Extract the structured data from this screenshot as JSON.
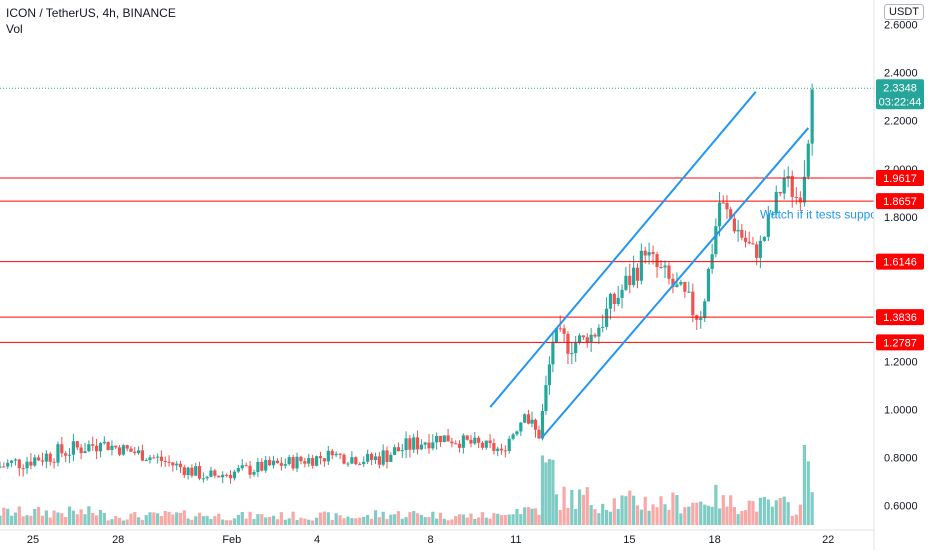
{
  "header": {
    "symbol_line": "ICON / TetherUS, 4h, BINANCE",
    "volume_label": "Vol",
    "currency_badge": "USDT"
  },
  "chart_data": {
    "type": "candlestick",
    "x_tick_labels": [
      "25",
      "28",
      "Feb",
      "4",
      "8",
      "11",
      "15",
      "18",
      "22"
    ],
    "y_tick_labels": [
      "2.6000",
      "2.4000",
      "2.2000",
      "2.0000",
      "1.8000",
      "1.6000",
      "1.4000",
      "1.2000",
      "1.0000",
      "0.8000",
      "0.6000"
    ],
    "y_ticks": [
      2.6,
      2.4,
      2.2,
      2.0,
      1.8,
      1.6,
      1.4,
      1.2,
      1.0,
      0.8,
      0.6
    ],
    "ylim": [
      0.52,
      2.66
    ],
    "last_price": {
      "value": 2.3348,
      "label": "2.3348",
      "countdown": "03:22:44",
      "color": "#26a69a"
    },
    "horizontal_levels": [
      {
        "value": 1.9617,
        "label": "1.9617"
      },
      {
        "value": 1.8657,
        "label": "1.8657"
      },
      {
        "value": 1.6146,
        "label": "1.6146"
      },
      {
        "value": 1.3836,
        "label": "1.3836"
      },
      {
        "value": 1.2787,
        "label": "1.2787"
      }
    ],
    "channel_lines": [
      {
        "x1": 9.1,
        "y1": 1.01,
        "x2": 18.45,
        "y2": 2.32
      },
      {
        "x1": 10.9,
        "y1": 0.88,
        "x2": 20.3,
        "y2": 2.17
      }
    ],
    "annotation": {
      "text": "Watch if it tests support",
      "x": 18.6,
      "y": 1.81
    },
    "colors": {
      "up": "#26a69a",
      "down": "#ef5350",
      "level": "#ff0000",
      "channel": "#2196f3",
      "volume_up": "#80cbc4",
      "volume_down": "#f7a9a7"
    },
    "segments": [
      {
        "from": 23.0,
        "to": 27.5,
        "start": 0.76,
        "end": 0.86,
        "wiggle": 0.04,
        "vol": 14
      },
      {
        "from": 27.5,
        "to": 29.8,
        "start": 0.86,
        "end": 0.8,
        "wiggle": 0.03,
        "vol": 10
      },
      {
        "from": 29.8,
        "to": 32.1,
        "start": 0.8,
        "end": 0.72,
        "wiggle": 0.03,
        "vol": 11
      },
      {
        "from": 32.1,
        "to": 37.5,
        "start": 0.72,
        "end": 0.81,
        "wiggle": 0.03,
        "vol": 10
      },
      {
        "from": 37.5,
        "to": 39.2,
        "start": 0.81,
        "end": 0.79,
        "wiggle": 0.03,
        "vol": 9
      },
      {
        "from": 39.2,
        "to": 42.0,
        "start": 0.79,
        "end": 0.89,
        "wiggle": 0.04,
        "vol": 12
      },
      {
        "from": 42.0,
        "to": 44.8,
        "start": 0.89,
        "end": 0.83,
        "wiggle": 0.03,
        "vol": 10
      },
      {
        "from": 44.8,
        "to": 45.8,
        "start": 0.83,
        "end": 0.98,
        "wiggle": 0.03,
        "vol": 18
      },
      {
        "from": 45.8,
        "to": 46.4,
        "start": 0.98,
        "end": 0.88,
        "wiggle": 0.04,
        "vol": 18
      },
      {
        "from": 46.4,
        "to": 47.0,
        "start": 0.88,
        "end": 1.28,
        "wiggle": 0.05,
        "vol": 60
      },
      {
        "from": 47.0,
        "to": 48.5,
        "start": 1.28,
        "end": 1.28,
        "wiggle": 0.06,
        "vol": 30
      },
      {
        "from": 48.5,
        "to": 51.0,
        "start": 1.28,
        "end": 1.64,
        "wiggle": 0.06,
        "vol": 26
      },
      {
        "from": 51.0,
        "to": 53.4,
        "start": 1.64,
        "end": 1.38,
        "wiggle": 0.06,
        "vol": 25
      },
      {
        "from": 53.4,
        "to": 54.2,
        "start": 1.38,
        "end": 1.86,
        "wiggle": 0.05,
        "vol": 30
      },
      {
        "from": 54.2,
        "to": 55.8,
        "start": 1.86,
        "end": 1.63,
        "wiggle": 0.05,
        "vol": 24
      },
      {
        "from": 55.8,
        "to": 57.0,
        "start": 1.63,
        "end": 1.96,
        "wiggle": 0.05,
        "vol": 22
      },
      {
        "from": 57.0,
        "to": 57.7,
        "start": 1.96,
        "end": 1.86,
        "wiggle": 0.05,
        "vol": 20
      },
      {
        "from": 57.7,
        "to": 58.2,
        "start": 1.86,
        "end": 2.33,
        "wiggle": 0.08,
        "vol": 70
      }
    ]
  }
}
